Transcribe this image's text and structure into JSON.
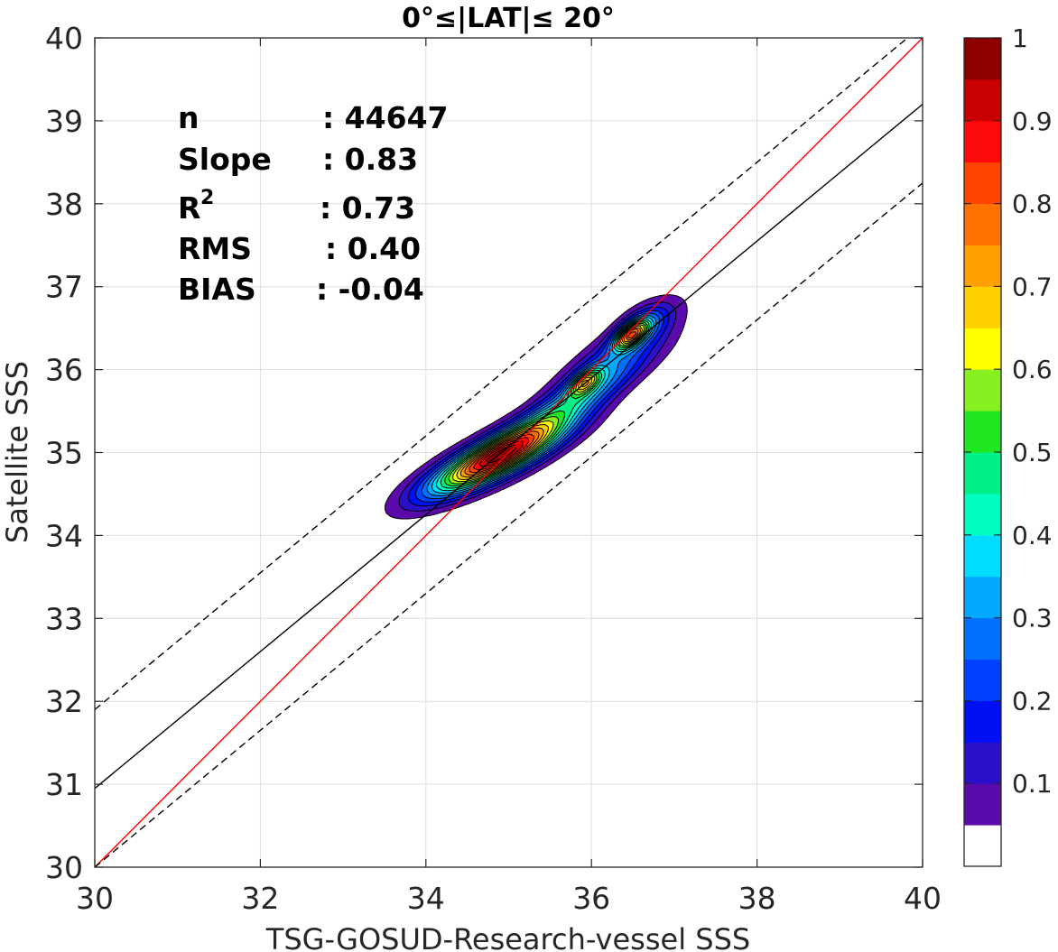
{
  "chart_data": {
    "type": "contour",
    "title": "0°≤|LAT|≤ 20°",
    "xlabel": "TSG-GOSUD-Research-vessel SSS",
    "ylabel": "Satellite SSS",
    "xlim": [
      30,
      40
    ],
    "ylim": [
      30,
      40
    ],
    "xticks": [
      "30",
      "32",
      "34",
      "36",
      "38",
      "40"
    ],
    "yticks": [
      "30",
      "31",
      "32",
      "33",
      "34",
      "35",
      "36",
      "37",
      "38",
      "39",
      "40"
    ],
    "grid": true,
    "stats": {
      "n_label": "n",
      "n_value": ": 44647",
      "slope_label": "Slope",
      "slope_value": ": 0.83",
      "r2_label": "R",
      "r2_sup": "2",
      "r2_value": ": 0.73",
      "rms_label": "RMS",
      "rms_value": ": 0.40",
      "bias_label": "BIAS",
      "bias_value": ": -0.04"
    },
    "lines": [
      {
        "kind": "identity",
        "color": "#ff0000",
        "dash": "solid",
        "x": [
          30,
          40
        ],
        "y": [
          30,
          40
        ]
      },
      {
        "kind": "regression",
        "color": "#000000",
        "dash": "solid",
        "x": [
          30,
          40
        ],
        "y": [
          30.95,
          39.2
        ]
      },
      {
        "kind": "upper",
        "color": "#000000",
        "dash": "dashed",
        "x": [
          30,
          40
        ],
        "y": [
          31.9,
          40.15
        ]
      },
      {
        "kind": "lower",
        "color": "#000000",
        "dash": "dashed",
        "x": [
          30,
          40
        ],
        "y": [
          30.0,
          38.25
        ]
      }
    ],
    "density_peaks": [
      {
        "x": 34.85,
        "y": 34.93,
        "peak": 1.0,
        "sx": 0.56,
        "sy": 0.3,
        "rho": 0.82
      },
      {
        "x": 36.48,
        "y": 36.42,
        "peak": 0.68,
        "sx": 0.14,
        "sy": 0.12,
        "rho": 0.6
      },
      {
        "x": 35.92,
        "y": 35.85,
        "peak": 0.48,
        "sx": 0.13,
        "sy": 0.11,
        "rho": 0.6
      },
      {
        "x": 35.55,
        "y": 35.45,
        "peak": 0.36,
        "sx": 0.7,
        "sy": 0.45,
        "rho": 0.93
      },
      {
        "x": 36.2,
        "y": 36.1,
        "peak": 0.26,
        "sx": 0.5,
        "sy": 0.4,
        "rho": 0.85
      },
      {
        "x": 36.65,
        "y": 36.55,
        "peak": 0.2,
        "sx": 0.22,
        "sy": 0.18,
        "rho": 0.5
      }
    ],
    "contour_levels": [
      0.05,
      0.1,
      0.15,
      0.2,
      0.25,
      0.3,
      0.35,
      0.4,
      0.45,
      0.5,
      0.55,
      0.6,
      0.65,
      0.7,
      0.75,
      0.8,
      0.85,
      0.9,
      0.95
    ],
    "colorbar": {
      "ticks": [
        "0.1",
        "0.2",
        "0.3",
        "0.4",
        "0.5",
        "0.6",
        "0.7",
        "0.8",
        "0.9",
        "1"
      ],
      "colors": [
        "#ffffff",
        "#5a0aaa",
        "#2a10c8",
        "#0010f5",
        "#0040ff",
        "#0070ff",
        "#00a8ff",
        "#00ddff",
        "#00ffbe",
        "#00f088",
        "#20e820",
        "#88f020",
        "#ffff00",
        "#ffd000",
        "#ffa000",
        "#ff7200",
        "#ff4500",
        "#ff0a0a",
        "#c80000",
        "#8c0000"
      ]
    }
  }
}
